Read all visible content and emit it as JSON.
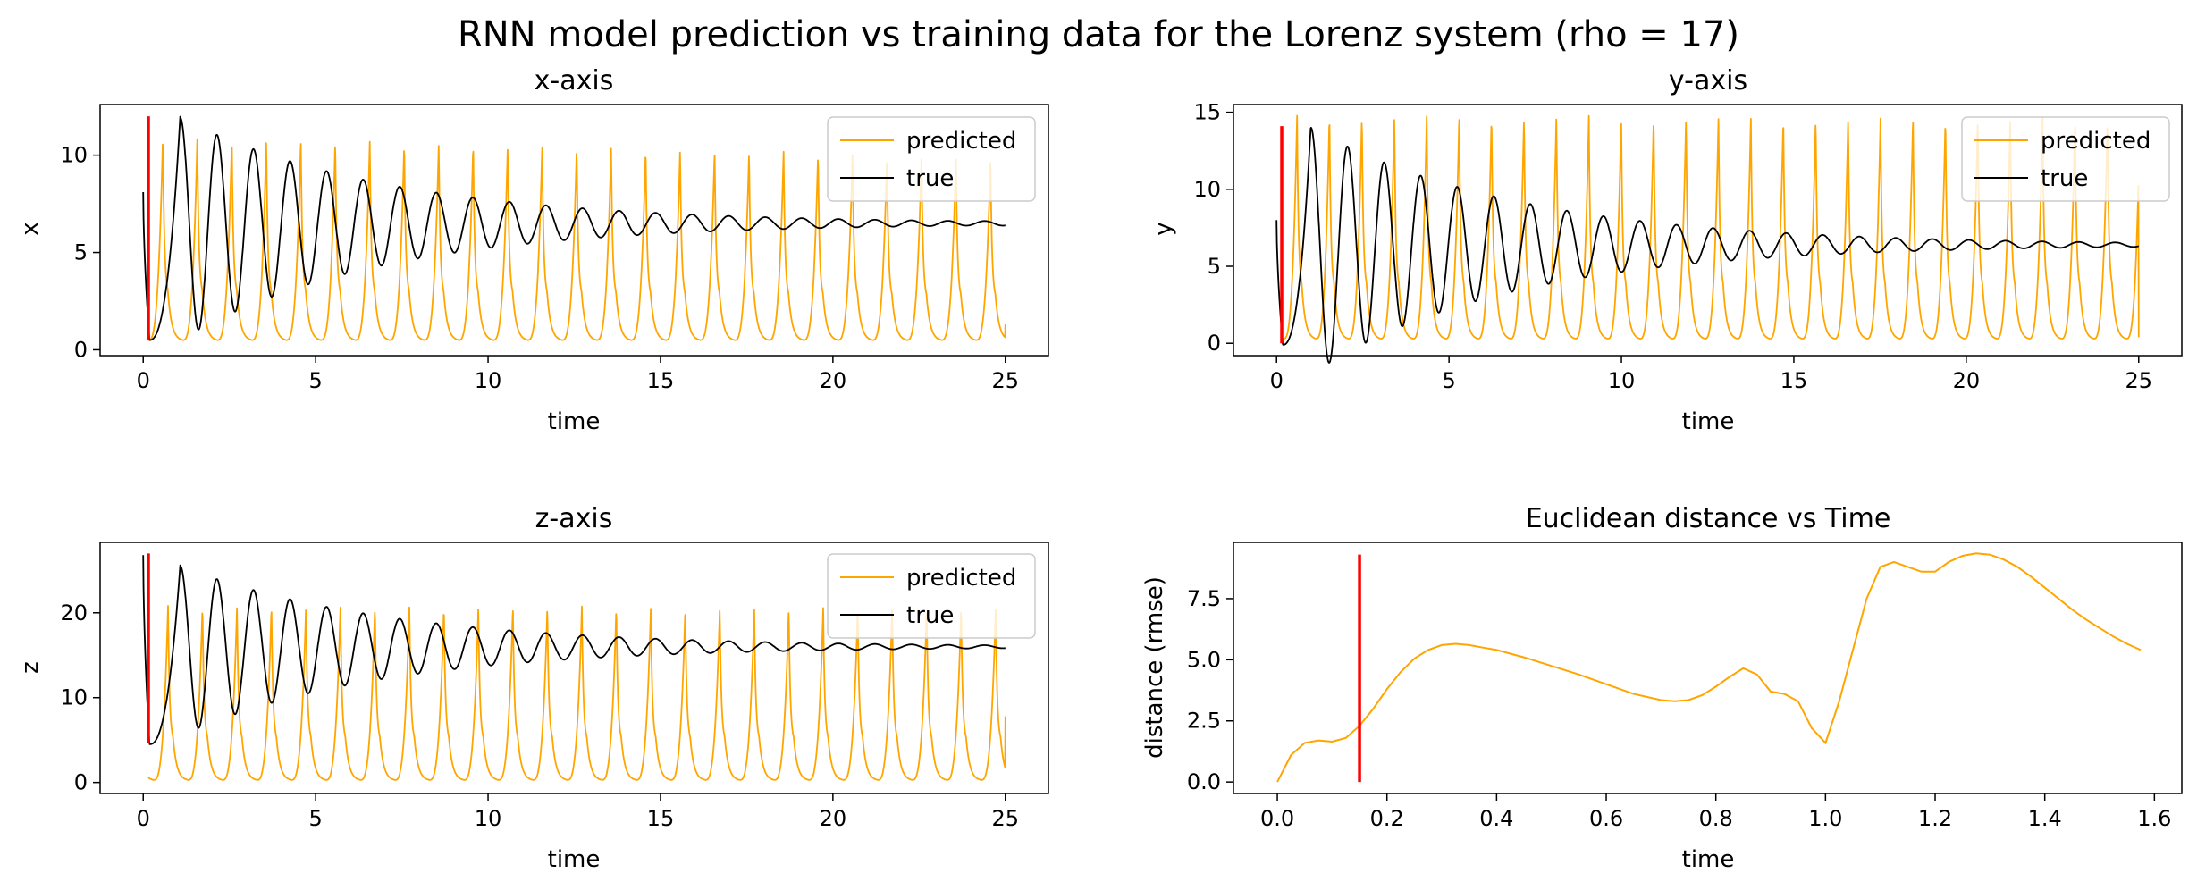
{
  "figure": {
    "title": "RNN model prediction vs training data for the Lorenz system (rho = 17)"
  },
  "colors": {
    "predicted": "#FFA500",
    "true": "#000000",
    "marker": "#FF0000"
  },
  "chart_data": [
    {
      "id": "x",
      "type": "line",
      "title": "x-axis",
      "xlabel": "time",
      "ylabel": "x",
      "xlim": [
        -1.25,
        26.25
      ],
      "ylim": [
        -0.3,
        12.6
      ],
      "xticks": [
        0,
        5,
        10,
        15,
        20,
        25
      ],
      "yticks": [
        0,
        5,
        10
      ],
      "legend": "top-right",
      "vline": {
        "x": 0.15,
        "y0": 0.5,
        "y1": 12.0
      },
      "series": [
        {
          "name": "predicted",
          "color": "#FFA500",
          "start": 0.15,
          "end": 25.0,
          "t_start": 0.15,
          "t_end": 25.0,
          "period": 1.0,
          "phase": 0.15,
          "min": 0.5,
          "max": 11.0,
          "max_end": 9.9,
          "last": 1.3
        },
        {
          "name": "true",
          "color": "#000000",
          "start": 0.0,
          "end": 25.0,
          "y0": 8.1,
          "p0": 0.5,
          "eq": 6.5,
          "amp1": 5.7,
          "decay": 0.17,
          "period": 1.06,
          "t1": 1.08,
          "amp_floor": 0.12
        }
      ]
    },
    {
      "id": "y",
      "type": "line",
      "title": "y-axis",
      "xlabel": "time",
      "ylabel": "y",
      "xlim": [
        -1.25,
        26.25
      ],
      "ylim": [
        -0.8,
        15.5
      ],
      "xticks": [
        0,
        5,
        10,
        15,
        20,
        25
      ],
      "yticks": [
        0,
        5,
        10,
        15
      ],
      "legend": "top-right",
      "vline": {
        "x": 0.15,
        "y0": 0.0,
        "y1": 14.1
      },
      "series": [
        {
          "name": "predicted",
          "color": "#FFA500",
          "start": 0.15,
          "end": 25.0,
          "t_start": 0.15,
          "t_end": 25.0,
          "period": 0.94,
          "phase": 0.2,
          "min": 0.3,
          "max": 14.9,
          "max_end": 14.6,
          "last": 0.4
        },
        {
          "name": "true",
          "color": "#000000",
          "start": 0.0,
          "end": 25.0,
          "y0": 8.0,
          "p0": -0.1,
          "eq": 6.4,
          "amp1": 8.0,
          "decay": 0.17,
          "period": 1.06,
          "t1": 1.0,
          "amp_floor": 0.1
        }
      ]
    },
    {
      "id": "z",
      "type": "line",
      "title": "z-axis",
      "xlabel": "time",
      "ylabel": "z",
      "xlim": [
        -1.25,
        26.25
      ],
      "ylim": [
        -1.3,
        28.3
      ],
      "xticks": [
        0,
        5,
        10,
        15,
        20,
        25
      ],
      "yticks": [
        0,
        10,
        20
      ],
      "legend": "top-right",
      "vline": {
        "x": 0.15,
        "y0": 4.7,
        "y1": 27.0
      },
      "series": [
        {
          "name": "predicted",
          "color": "#FFA500",
          "start": 0.15,
          "end": 25.0,
          "t_start": 0.15,
          "t_end": 25.0,
          "period": 1.0,
          "phase": 0.3,
          "min": 0.3,
          "max": 20.9,
          "max_end": 20.6,
          "last": 7.8
        },
        {
          "name": "true",
          "color": "#000000",
          "start": 0.0,
          "end": 25.0,
          "y0": 26.8,
          "p0": 4.5,
          "eq": 16.0,
          "amp1": 10.0,
          "decay": 0.17,
          "period": 1.06,
          "t1": 1.08,
          "amp_floor": 0.12
        }
      ]
    },
    {
      "id": "dist",
      "type": "line",
      "title": "Euclidean distance vs Time",
      "xlabel": "time",
      "ylabel": "distance (rmse)",
      "xlim": [
        -0.08,
        1.65
      ],
      "ylim": [
        -0.47,
        9.8
      ],
      "xticks": [
        0.0,
        0.2,
        0.4,
        0.6,
        0.8,
        1.0,
        1.2,
        1.4,
        1.6
      ],
      "xtick_labels": [
        "0.0",
        "0.2",
        "0.4",
        "0.6",
        "0.8",
        "1.0",
        "1.2",
        "1.4",
        "1.6"
      ],
      "yticks": [
        0.0,
        2.5,
        5.0,
        7.5
      ],
      "ytick_labels": [
        "0.0",
        "2.5",
        "5.0",
        "7.5"
      ],
      "vline": {
        "x": 0.15,
        "y0": 0.0,
        "y1": 9.3
      },
      "series": [
        {
          "color": "#FFA500",
          "x": [
            0.0,
            0.025,
            0.05,
            0.075,
            0.1,
            0.125,
            0.15,
            0.175,
            0.2,
            0.225,
            0.25,
            0.275,
            0.3,
            0.325,
            0.35,
            0.375,
            0.4,
            0.45,
            0.5,
            0.55,
            0.6,
            0.65,
            0.7,
            0.725,
            0.75,
            0.775,
            0.8,
            0.825,
            0.85,
            0.875,
            0.9,
            0.925,
            0.95,
            0.975,
            1.0,
            1.025,
            1.05,
            1.075,
            1.1,
            1.125,
            1.15,
            1.175,
            1.2,
            1.225,
            1.25,
            1.275,
            1.3,
            1.325,
            1.35,
            1.375,
            1.4,
            1.425,
            1.45,
            1.475,
            1.5,
            1.525,
            1.55,
            1.575
          ],
          "values": [
            0.0,
            1.1,
            1.6,
            1.7,
            1.65,
            1.8,
            2.3,
            3.0,
            3.8,
            4.5,
            5.05,
            5.4,
            5.6,
            5.65,
            5.6,
            5.5,
            5.4,
            5.1,
            4.75,
            4.4,
            4.0,
            3.6,
            3.35,
            3.3,
            3.35,
            3.55,
            3.9,
            4.3,
            4.65,
            4.4,
            3.7,
            3.6,
            3.3,
            2.2,
            1.6,
            3.3,
            5.4,
            7.5,
            8.8,
            9.0,
            8.8,
            8.6,
            8.6,
            9.0,
            9.25,
            9.35,
            9.3,
            9.1,
            8.8,
            8.4,
            7.95,
            7.5,
            7.05,
            6.65,
            6.3,
            5.95,
            5.65,
            5.4
          ]
        }
      ]
    }
  ]
}
